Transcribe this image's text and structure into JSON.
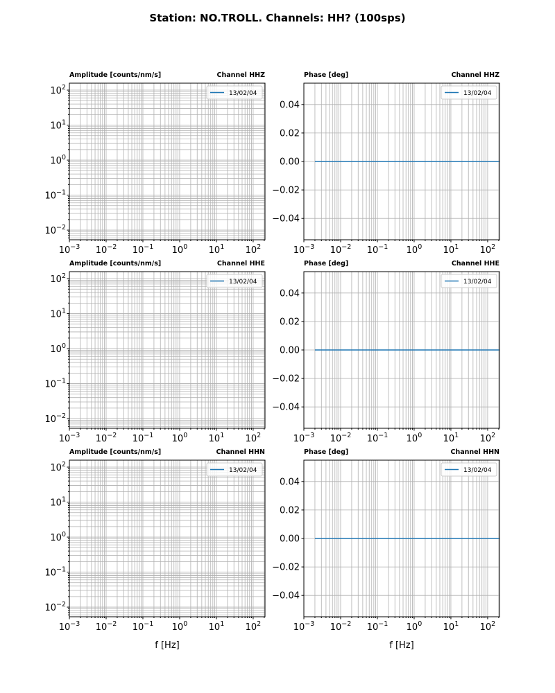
{
  "title": "Station: NO.TROLL. Channels: HH? (100sps)",
  "colors": {
    "line": "#1f77b4",
    "grid": "#b0b0b0"
  },
  "chart_data": [
    {
      "type": "line",
      "row": 0,
      "col": 0,
      "title_left": "Amplitude [counts/nm/s]",
      "title_right": "Channel HHZ",
      "xscale": "log",
      "yscale": "log",
      "xlim": [
        0.001,
        210
      ],
      "ylim": [
        0.0053,
        158
      ],
      "xlabel": "",
      "legend": [
        "13/02/04"
      ],
      "legend_loc": "top-right",
      "series": []
    },
    {
      "type": "line",
      "row": 0,
      "col": 1,
      "title_left": "Phase [deg]",
      "title_right": "Channel HHZ",
      "xscale": "log",
      "yscale": "linear",
      "xlim": [
        0.001,
        210
      ],
      "ylim": [
        -0.055,
        0.055
      ],
      "yticks": [
        -0.04,
        -0.02,
        0.0,
        0.02,
        0.04
      ],
      "xlabel": "",
      "legend": [
        "13/02/04"
      ],
      "legend_loc": "top-right",
      "series": [
        {
          "name": "13/02/04",
          "x": [
            0.002,
            210
          ],
          "y": [
            0,
            0
          ]
        }
      ]
    },
    {
      "type": "line",
      "row": 1,
      "col": 0,
      "title_left": "Amplitude [counts/nm/s]",
      "title_right": "Channel HHE",
      "xscale": "log",
      "yscale": "log",
      "xlim": [
        0.001,
        210
      ],
      "ylim": [
        0.0053,
        158
      ],
      "xlabel": "",
      "legend": [
        "13/02/04"
      ],
      "legend_loc": "top-right",
      "series": []
    },
    {
      "type": "line",
      "row": 1,
      "col": 1,
      "title_left": "Phase [deg]",
      "title_right": "Channel HHE",
      "xscale": "log",
      "yscale": "linear",
      "xlim": [
        0.001,
        210
      ],
      "ylim": [
        -0.055,
        0.055
      ],
      "yticks": [
        -0.04,
        -0.02,
        0.0,
        0.02,
        0.04
      ],
      "xlabel": "",
      "legend": [
        "13/02/04"
      ],
      "legend_loc": "top-right",
      "series": [
        {
          "name": "13/02/04",
          "x": [
            0.002,
            210
          ],
          "y": [
            0,
            0
          ]
        }
      ]
    },
    {
      "type": "line",
      "row": 2,
      "col": 0,
      "title_left": "Amplitude [counts/nm/s]",
      "title_right": "Channel HHN",
      "xscale": "log",
      "yscale": "log",
      "xlim": [
        0.001,
        210
      ],
      "ylim": [
        0.0053,
        158
      ],
      "xlabel": "f [Hz]",
      "legend": [
        "13/02/04"
      ],
      "legend_loc": "top-right",
      "series": []
    },
    {
      "type": "line",
      "row": 2,
      "col": 1,
      "title_left": "Phase [deg]",
      "title_right": "Channel HHN",
      "xscale": "log",
      "yscale": "linear",
      "xlim": [
        0.001,
        210
      ],
      "ylim": [
        -0.055,
        0.055
      ],
      "yticks": [
        -0.04,
        -0.02,
        0.0,
        0.02,
        0.04
      ],
      "xlabel": "f [Hz]",
      "legend": [
        "13/02/04"
      ],
      "legend_loc": "top-right",
      "series": [
        {
          "name": "13/02/04",
          "x": [
            0.002,
            210
          ],
          "y": [
            0,
            0
          ]
        }
      ]
    }
  ]
}
